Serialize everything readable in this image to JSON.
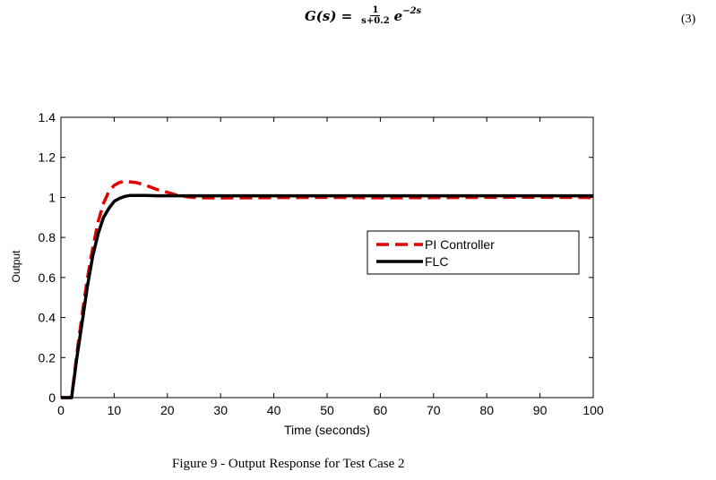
{
  "equation": {
    "lhs": "G(s) =",
    "numerator": "1",
    "denominator": "s+0.2",
    "exponential_base": "e",
    "exponent": "−2s",
    "number": "(3)"
  },
  "figure_caption": "Figure 9 - Output Response for Test Case 2",
  "chart_data": {
    "type": "line",
    "title": "",
    "xlabel": "Time (seconds)",
    "ylabel": "Output",
    "xlim": [
      0,
      100
    ],
    "ylim": [
      0,
      1.4
    ],
    "xticks": [
      0,
      10,
      20,
      30,
      40,
      50,
      60,
      70,
      80,
      90,
      100
    ],
    "yticks": [
      0,
      0.2,
      0.4,
      0.6,
      0.8,
      1,
      1.2,
      1.4
    ],
    "xtick_labels": [
      "0",
      "10",
      "20",
      "30",
      "40",
      "50",
      "60",
      "70",
      "80",
      "90",
      "100"
    ],
    "ytick_labels": [
      "0",
      "0.2",
      "0.4",
      "0.6",
      "0.8",
      "1",
      "1.2",
      "1.4"
    ],
    "grid": false,
    "legend_position": "right",
    "series": [
      {
        "name": "PI Controller",
        "color": "#e00000",
        "style": "dashed",
        "x": [
          0,
          2,
          3,
          4,
          5,
          6,
          7,
          8,
          9,
          10,
          11,
          12,
          14,
          16,
          18,
          20,
          22,
          24,
          26,
          30,
          35,
          40,
          50,
          60,
          70,
          80,
          90,
          100
        ],
        "y": [
          0,
          0,
          0.22,
          0.42,
          0.6,
          0.75,
          0.88,
          0.97,
          1.03,
          1.06,
          1.075,
          1.08,
          1.075,
          1.06,
          1.04,
          1.025,
          1.01,
          1.002,
          0.998,
          0.997,
          0.998,
          0.999,
          1.0,
          0.998,
          0.999,
          1.0,
          1.001,
          0.999
        ]
      },
      {
        "name": "FLC",
        "color": "#000000",
        "style": "solid",
        "x": [
          0,
          2,
          3,
          4,
          5,
          6,
          7,
          8,
          9,
          10,
          11,
          12,
          13,
          14,
          16,
          18,
          20,
          25,
          30,
          40,
          50,
          60,
          70,
          80,
          90,
          100
        ],
        "y": [
          0,
          0,
          0.2,
          0.38,
          0.56,
          0.71,
          0.82,
          0.9,
          0.945,
          0.98,
          0.995,
          1.005,
          1.01,
          1.01,
          1.01,
          1.008,
          1.008,
          1.008,
          1.008,
          1.008,
          1.008,
          1.008,
          1.008,
          1.008,
          1.008,
          1.008
        ]
      }
    ]
  }
}
